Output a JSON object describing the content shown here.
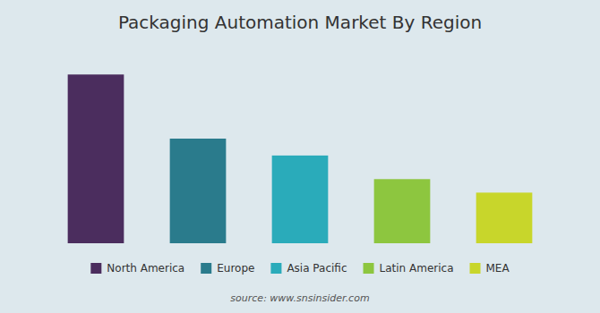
{
  "chart_data": {
    "type": "bar",
    "title": "Packaging Automation Market By Region",
    "categories": [
      "North America",
      "Europe",
      "Asia Pacific",
      "Latin America",
      "MEA"
    ],
    "values": [
      100,
      62,
      52,
      38,
      30
    ],
    "colors": [
      "#4B2D5E",
      "#2A7B8C",
      "#2AABBA",
      "#8DC63F",
      "#C8D62B"
    ],
    "ylim": [
      0,
      115
    ],
    "tick_labels": false,
    "grid": false,
    "legend": "bottom",
    "annotations": [
      "source: www.snsinsider.com"
    ]
  }
}
